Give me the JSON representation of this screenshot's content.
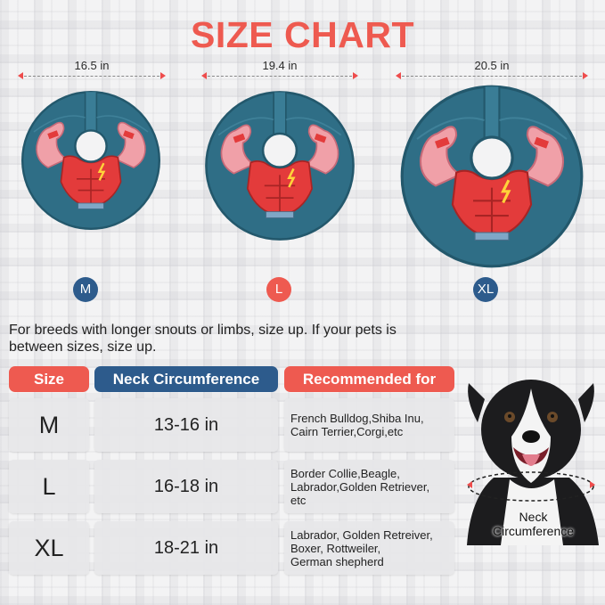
{
  "title": "SIZE CHART",
  "products": [
    {
      "size": "M",
      "width": "16.5 in",
      "badge_color": "#2d5b8c"
    },
    {
      "size": "L",
      "width": "19.4 in",
      "badge_color": "#ee5a50"
    },
    {
      "size": "XL",
      "width": "20.5 in",
      "badge_color": "#2d5b8c"
    }
  ],
  "note": "For breeds with longer snouts or limbs, size up. If your pets is between sizes, size up.",
  "table": {
    "headers": {
      "size": "Size",
      "neck": "Neck Circumference",
      "recommended": "Recommended for"
    },
    "header_colors": {
      "red": "#ee5a50",
      "blue": "#2d5b8c"
    },
    "rows": [
      {
        "size": "M",
        "neck": "13-16 in",
        "recommended": [
          "French Bulldog,Shiba Inu,",
          "Cairn Terrier,Corgi,etc"
        ]
      },
      {
        "size": "L",
        "neck": "16-18 in",
        "recommended": [
          "Border Collie,Beagle,",
          "Labrador,Golden Retriever,",
          "etc"
        ]
      },
      {
        "size": "XL",
        "neck": "18-21 in",
        "recommended": [
          "Labrador, Golden Retreiver,",
          "Boxer, Rottweiler,",
          "German shepherd"
        ]
      }
    ]
  },
  "dog_label": [
    "Neck",
    "Circumference"
  ],
  "colors": {
    "cone": "#2f6e86",
    "muscle": "#f0a0a8",
    "suit": "#e33b3b",
    "accent_red": "#ee5a50",
    "navy": "#2d5b8c"
  }
}
